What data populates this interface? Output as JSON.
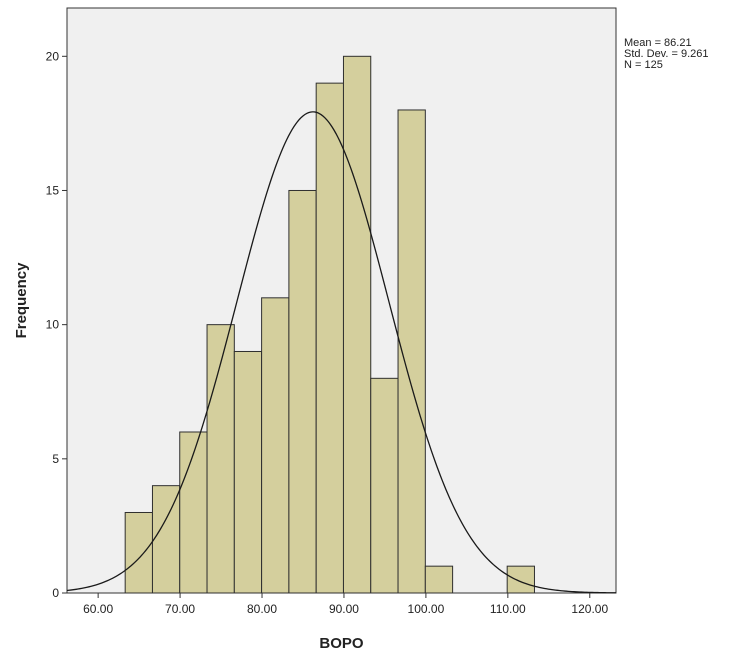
{
  "chart_data": {
    "type": "bar",
    "subtype": "histogram",
    "xlabel": "BOPO",
    "ylabel": "Frequency",
    "xlim": [
      56.2,
      123.2
    ],
    "ylim": [
      0,
      21.8
    ],
    "x_ticks": [
      60,
      70,
      80,
      90,
      100,
      110,
      120
    ],
    "x_tick_labels": [
      "60.00",
      "70.00",
      "80.00",
      "90.00",
      "100.00",
      "110.00",
      "120.00"
    ],
    "y_ticks": [
      0,
      5,
      10,
      15,
      20
    ],
    "y_tick_labels": [
      "0",
      "5",
      "10",
      "15",
      "20"
    ],
    "bin_width": 3.33,
    "bins": [
      {
        "start": 63.3,
        "end": 66.63,
        "count": 3
      },
      {
        "start": 66.63,
        "end": 69.96,
        "count": 4
      },
      {
        "start": 69.96,
        "end": 73.29,
        "count": 6
      },
      {
        "start": 73.29,
        "end": 76.62,
        "count": 10
      },
      {
        "start": 76.62,
        "end": 79.95,
        "count": 9
      },
      {
        "start": 79.95,
        "end": 83.28,
        "count": 11
      },
      {
        "start": 83.28,
        "end": 86.61,
        "count": 15
      },
      {
        "start": 86.61,
        "end": 89.94,
        "count": 19
      },
      {
        "start": 89.94,
        "end": 93.27,
        "count": 20
      },
      {
        "start": 93.27,
        "end": 96.6,
        "count": 8
      },
      {
        "start": 96.6,
        "end": 99.93,
        "count": 18
      },
      {
        "start": 99.93,
        "end": 103.26,
        "count": 1
      },
      {
        "start": 103.26,
        "end": 106.59,
        "count": 0
      },
      {
        "start": 106.59,
        "end": 109.92,
        "count": 0
      },
      {
        "start": 109.92,
        "end": 113.25,
        "count": 1
      }
    ],
    "normal_curve": {
      "mean": 86.21,
      "sd": 9.261,
      "n": 125
    },
    "stats_lines": [
      "Mean = 86.21",
      "Std. Dev. = 9.261",
      "N = 125"
    ],
    "grid": false,
    "colors": {
      "bar_fill": "#d4cf9d",
      "bar_stroke": "#2f2f2f",
      "plot_background": "#f0f0f0",
      "curve": "#1a1a1a",
      "axis": "#333333",
      "text": "#222222"
    }
  }
}
